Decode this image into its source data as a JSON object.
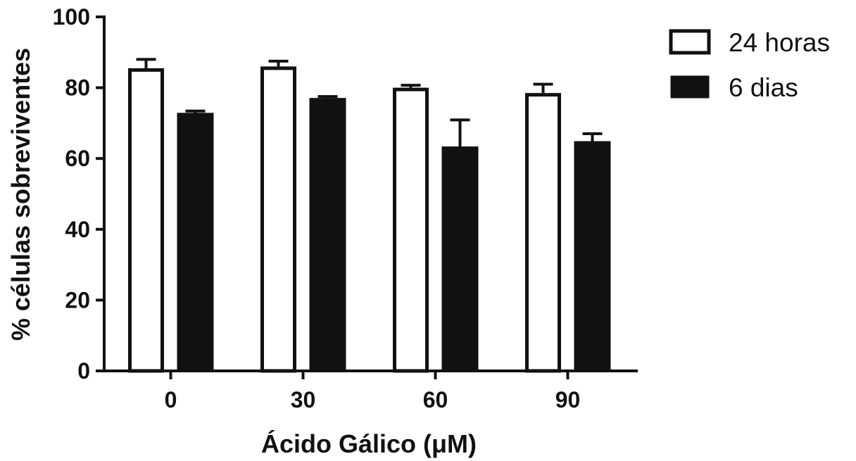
{
  "chart_data": {
    "type": "bar",
    "title": "",
    "xlabel": "Ácido Gálico (μM)",
    "ylabel": "% células sobreviventes",
    "categories": [
      "0",
      "30",
      "60",
      "90"
    ],
    "ylim": [
      0,
      100
    ],
    "yticks": [
      "0",
      "20",
      "40",
      "60",
      "80",
      "100"
    ],
    "grid": false,
    "legend_position": "top-right",
    "series": [
      {
        "name": "24 horas",
        "values": [
          85.5,
          86,
          80,
          78.5
        ],
        "errors": [
          2.5,
          1.5,
          0.7,
          2.5
        ],
        "fill": "#ffffff",
        "stroke": "#111111"
      },
      {
        "name": "6 dias",
        "values": [
          72.8,
          77,
          63.3,
          64.8
        ],
        "errors": [
          0.6,
          0.5,
          7.6,
          2.2
        ],
        "fill": "#111111",
        "stroke": "#111111"
      }
    ]
  }
}
